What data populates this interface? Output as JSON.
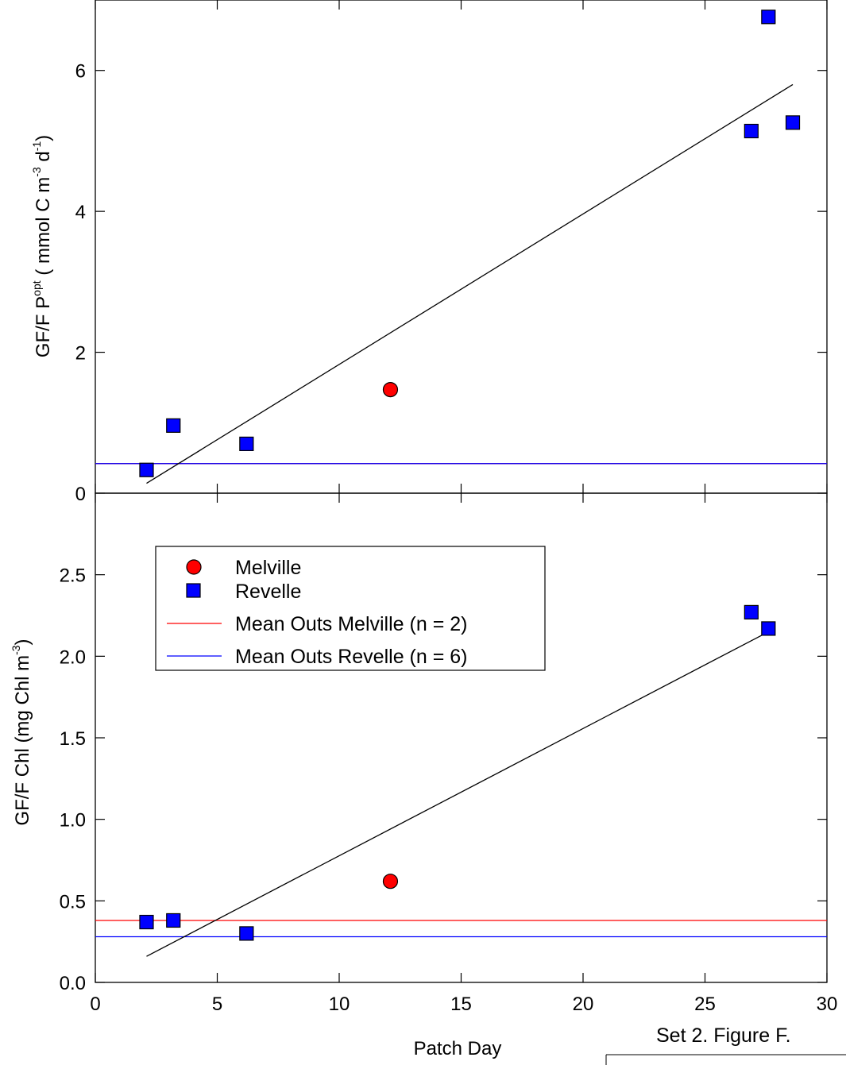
{
  "chart_data": [
    {
      "type": "scatter",
      "panel": "top",
      "title": "",
      "xlabel": "",
      "ylabel": {
        "prefix": "GF/F P",
        "sup": "opt",
        "unit_a": " ( mmol C m",
        "unit_sup1": "-3",
        "unit_b": " d",
        "unit_sup2": "-1",
        "unit_c": ")"
      },
      "xlim": [
        0,
        30
      ],
      "ylim": [
        0,
        7.0
      ],
      "x_ticks": [
        0,
        5,
        10,
        15,
        20,
        25,
        30
      ],
      "y_ticks": [
        0,
        2,
        4,
        6
      ],
      "y_tick_labels": [
        "0",
        "2",
        "4",
        "6"
      ],
      "series": [
        {
          "name": "Melville",
          "marker": "circle",
          "color": "#ff0000",
          "x": [
            12.1
          ],
          "y": [
            1.47
          ]
        },
        {
          "name": "Revelle",
          "marker": "square",
          "color": "#0000ff",
          "x": [
            2.1,
            3.2,
            6.2,
            26.9,
            27.6,
            28.6
          ],
          "y": [
            0.33,
            0.96,
            0.7,
            5.14,
            6.76,
            5.26
          ]
        }
      ],
      "reference_lines": [
        {
          "name": "Mean Outs Melville (n = 2)",
          "color": "#ff0000",
          "y": 0.42
        },
        {
          "name": "Mean Outs Revelle (n = 6)",
          "color": "#0000ff",
          "y": 0.42
        }
      ],
      "regression_line": {
        "color": "#000000",
        "x": [
          2.1,
          28.6
        ],
        "y": [
          0.14,
          5.8
        ]
      }
    },
    {
      "type": "scatter",
      "panel": "bottom",
      "title": "",
      "xlabel": "Patch Day",
      "ylabel": {
        "prefix": "GF/F Chl (mg Chl m",
        "sup": "-3",
        "suffix": ")"
      },
      "xlim": [
        0,
        30
      ],
      "ylim": [
        0,
        3.0
      ],
      "x_ticks": [
        0,
        5,
        10,
        15,
        20,
        25,
        30
      ],
      "x_tick_labels": [
        "0",
        "5",
        "10",
        "15",
        "20",
        "25",
        "30"
      ],
      "y_ticks": [
        0,
        0.5,
        1.0,
        1.5,
        2.0,
        2.5
      ],
      "y_tick_labels": [
        "0.0",
        "0.5",
        "1.0",
        "1.5",
        "2.0",
        "2.5"
      ],
      "series": [
        {
          "name": "Melville",
          "marker": "circle",
          "color": "#ff0000",
          "x": [
            12.1
          ],
          "y": [
            0.62
          ]
        },
        {
          "name": "Revelle",
          "marker": "square",
          "color": "#0000ff",
          "x": [
            2.1,
            3.2,
            6.2,
            26.9,
            27.6
          ],
          "y": [
            0.37,
            0.38,
            0.3,
            2.27,
            2.17
          ]
        }
      ],
      "reference_lines": [
        {
          "name": "Mean Outs Melville (n = 2)",
          "color": "#ff0000",
          "y": 0.38
        },
        {
          "name": "Mean Outs Revelle (n = 6)",
          "color": "#0000ff",
          "y": 0.28
        }
      ],
      "regression_line": {
        "color": "#000000",
        "x": [
          2.1,
          27.6
        ],
        "y": [
          0.16,
          2.15
        ]
      }
    }
  ],
  "legend": {
    "placement": "upper-left",
    "entries": [
      {
        "label": "Melville",
        "kind": "circle",
        "color": "#ff0000"
      },
      {
        "label": "Revelle",
        "kind": "square",
        "color": "#0000ff"
      },
      {
        "label": "Mean Outs Melville (n = 2)",
        "kind": "line",
        "color": "#ff0000"
      },
      {
        "label": "Mean Outs Revelle (n = 6)",
        "kind": "line",
        "color": "#0000ff"
      }
    ]
  },
  "caption": "Set 2. Figure F."
}
